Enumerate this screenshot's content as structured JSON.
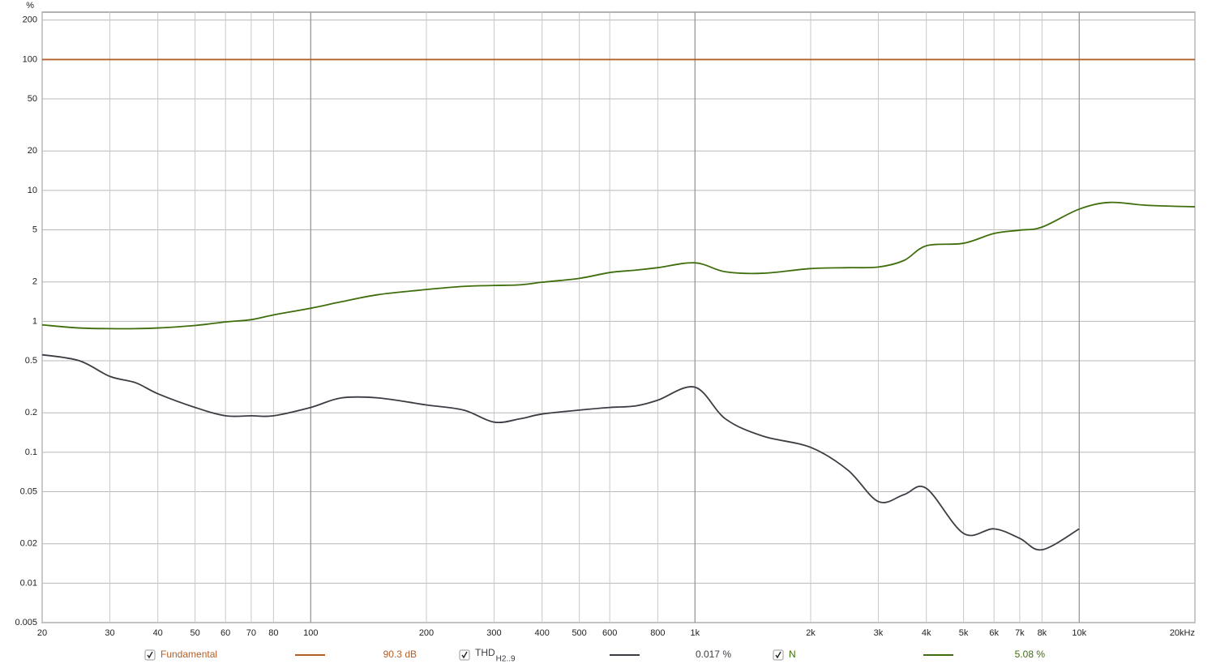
{
  "chart_data": {
    "type": "line",
    "y_unit": "%",
    "xlog": true,
    "ylog": true,
    "grid": true,
    "xlim": [
      20,
      20000
    ],
    "ylim": [
      0.005,
      230
    ],
    "xticks": [
      20,
      30,
      40,
      50,
      60,
      70,
      80,
      100,
      200,
      300,
      400,
      500,
      600,
      800,
      {
        "value": 1000,
        "label": "1k"
      },
      {
        "value": 2000,
        "label": "2k"
      },
      {
        "value": 3000,
        "label": "3k"
      },
      {
        "value": 4000,
        "label": "4k"
      },
      {
        "value": 5000,
        "label": "5k"
      },
      {
        "value": 6000,
        "label": "6k"
      },
      {
        "value": 7000,
        "label": "7k"
      },
      {
        "value": 8000,
        "label": "8k"
      },
      {
        "value": 10000,
        "label": "10k"
      },
      {
        "value": 20000,
        "label": "20kHz"
      }
    ],
    "yticks": [
      200,
      100,
      50,
      20,
      10,
      5,
      2,
      1,
      0.5,
      0.2,
      0.1,
      0.05,
      0.02,
      0.01,
      0.005
    ],
    "x": [
      20,
      25,
      30,
      35,
      40,
      50,
      60,
      70,
      80,
      100,
      120,
      150,
      200,
      250,
      300,
      350,
      400,
      500,
      600,
      700,
      800,
      1000,
      1200,
      1500,
      2000,
      2500,
      3000,
      3500,
      4000,
      5000,
      6000,
      7000,
      8000,
      10000,
      12000,
      15000,
      20000
    ],
    "series": [
      {
        "name": "Fundamental",
        "color": "#b0602a",
        "readout": "90.3 dB",
        "values": [
          100,
          100,
          100,
          100,
          100,
          100,
          100,
          100,
          100,
          100,
          100,
          100,
          100,
          100,
          100,
          100,
          100,
          100,
          100,
          100,
          100,
          100,
          100,
          100,
          100,
          100,
          100,
          100,
          100,
          100,
          100,
          100,
          100,
          100,
          100,
          100,
          100
        ]
      },
      {
        "name": "THD",
        "name_subscript": "H2..9",
        "color": "#3c3c44",
        "readout": "0.017 %",
        "values": [
          0.556,
          0.5,
          0.38,
          0.34,
          0.28,
          0.22,
          0.19,
          0.19,
          0.19,
          0.22,
          0.26,
          0.26,
          0.23,
          0.21,
          0.17,
          0.18,
          0.196,
          0.21,
          0.22,
          0.226,
          0.25,
          0.314,
          0.18,
          0.133,
          0.109,
          0.073,
          0.042,
          0.0475,
          0.053,
          0.024,
          0.026,
          0.022,
          0.018,
          0.026,
          null,
          null,
          null
        ]
      },
      {
        "name": "N",
        "color": "#3f6e0c",
        "readout": "5.08 %",
        "values": [
          0.94,
          0.89,
          0.88,
          0.88,
          0.89,
          0.93,
          0.99,
          1.03,
          1.12,
          1.26,
          1.41,
          1.6,
          1.75,
          1.85,
          1.88,
          1.9,
          1.99,
          2.13,
          2.36,
          2.46,
          2.57,
          2.8,
          2.39,
          2.33,
          2.53,
          2.57,
          2.6,
          2.92,
          3.78,
          3.95,
          4.69,
          4.97,
          5.25,
          7.2,
          8.1,
          7.7,
          7.5
        ]
      }
    ]
  }
}
